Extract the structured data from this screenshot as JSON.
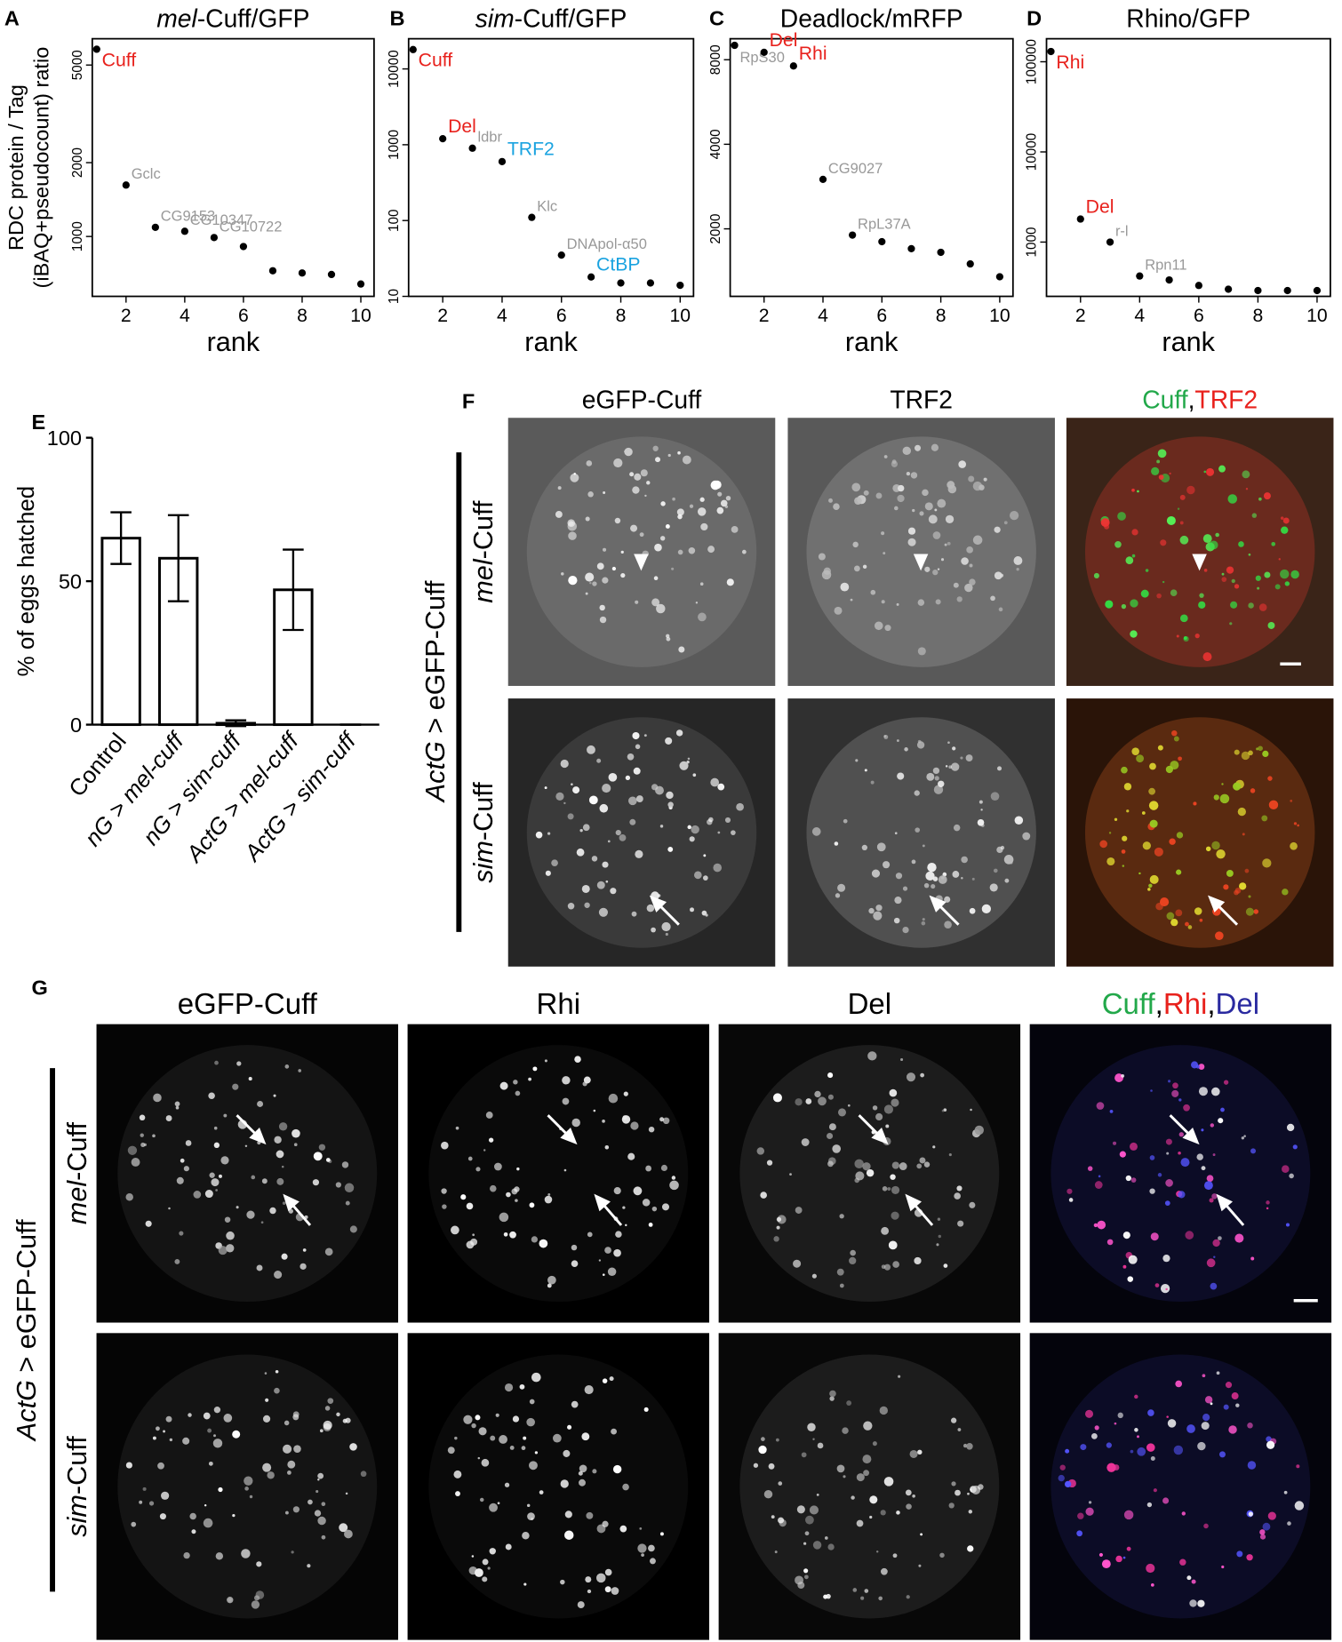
{
  "chart_data": [
    {
      "type": "scatter",
      "panel": "A",
      "title": [
        {
          "text": "mel",
          "italic": true
        },
        {
          "text": "-Cuff/GFP"
        }
      ],
      "xlabel": "rank",
      "ylabel": [
        "RDC protein / Tag",
        "(iBAQ+pseudocount) ratio"
      ],
      "x": [
        1,
        2,
        3,
        4,
        5,
        6,
        7,
        8,
        9,
        10
      ],
      "y": [
        5800,
        1620,
        1090,
        1050,
        990,
        910,
        725,
        710,
        700,
        640
      ],
      "point_labels": [
        "Cuff",
        "Gclc",
        "CG9153",
        "CG10347",
        "CG10722",
        null,
        null,
        null,
        null,
        null
      ],
      "point_label_colors": [
        "#e8211c",
        "#999999",
        "#999999",
        "#999999",
        "#999999",
        null,
        null,
        null,
        null,
        null
      ],
      "log_y": true,
      "xlim": [
        0.85,
        10.45
      ],
      "ylim": [
        570,
        6400
      ],
      "xticks": [
        2,
        4,
        6,
        8,
        10
      ],
      "yticks": [
        1000,
        2000,
        5000
      ],
      "color": "#000000"
    },
    {
      "type": "scatter",
      "panel": "B",
      "title": [
        {
          "text": "sim",
          "italic": true
        },
        {
          "text": "-Cuff/GFP"
        }
      ],
      "xlabel": "rank",
      "x": [
        1,
        2,
        3,
        4,
        5,
        6,
        7,
        8,
        9,
        10
      ],
      "y": [
        18000,
        1200,
        900,
        600,
        110,
        35,
        18,
        15,
        15,
        14
      ],
      "point_labels": [
        "Cuff",
        "Del",
        "ldbr",
        "TRF2",
        "Klc",
        "DNApol-α50",
        "CtBP",
        null,
        null,
        null
      ],
      "point_label_colors": [
        "#e8211c",
        "#e8211c",
        "#999999",
        "#1aa3e0",
        "#999999",
        "#999999",
        "#1aa3e0",
        null,
        null,
        null
      ],
      "log_y": true,
      "xlim": [
        0.85,
        10.45
      ],
      "ylim": [
        10,
        25000
      ],
      "xticks": [
        2,
        4,
        6,
        8,
        10
      ],
      "yticks": [
        10,
        100,
        1000,
        10000
      ],
      "color": "#000000"
    },
    {
      "type": "scatter",
      "panel": "C",
      "title": [
        {
          "text": "Deadlock/mRFP"
        }
      ],
      "xlabel": "rank",
      "x": [
        1,
        2,
        3,
        4,
        5,
        6,
        7,
        8,
        9,
        10
      ],
      "y": [
        9000,
        8500,
        7600,
        3000,
        1900,
        1800,
        1700,
        1650,
        1500,
        1350
      ],
      "point_labels": [
        "RpS30",
        "Del",
        "Rhi",
        "CG9027",
        "RpL37A",
        null,
        null,
        null,
        null,
        null
      ],
      "point_label_colors": [
        "#999999",
        "#e8211c",
        "#e8211c",
        "#999999",
        "#999999",
        null,
        null,
        null,
        null,
        null
      ],
      "log_y": true,
      "xlim": [
        0.85,
        10.45
      ],
      "ylim": [
        1150,
        9500
      ],
      "xticks": [
        2,
        4,
        6,
        8,
        10
      ],
      "yticks": [
        2000,
        4000,
        8000
      ],
      "color": "#000000"
    },
    {
      "type": "scatter",
      "panel": "D",
      "title": [
        {
          "text": "Rhino/GFP"
        }
      ],
      "xlabel": "rank",
      "x": [
        1,
        2,
        3,
        4,
        5,
        6,
        7,
        8,
        9,
        10
      ],
      "y": [
        130000,
        1800,
        1000,
        420,
        380,
        330,
        300,
        290,
        290,
        290
      ],
      "point_labels": [
        "Rhi",
        "Del",
        "r-l",
        "Rpn11",
        null,
        null,
        null,
        null,
        null,
        null
      ],
      "point_label_colors": [
        "#e8211c",
        "#e8211c",
        "#999999",
        "#999999",
        null,
        null,
        null,
        null,
        null,
        null
      ],
      "log_y": true,
      "xlim": [
        0.85,
        10.45
      ],
      "ylim": [
        250,
        180000
      ],
      "xticks": [
        2,
        4,
        6,
        8,
        10
      ],
      "yticks": [
        1000,
        10000,
        100000
      ],
      "color": "#000000"
    },
    {
      "type": "bar",
      "panel": "E",
      "ylabel": "% of eggs hatched",
      "categories": [
        "Control",
        "nG > mel-cuff",
        "nG > sim-cuff",
        "ActG > mel-cuff",
        "ActG > sim-cuff"
      ],
      "category_italic": [
        false,
        true,
        true,
        true,
        true
      ],
      "values": [
        65,
        58,
        0.5,
        47,
        0
      ],
      "errors": [
        9,
        15,
        1,
        14,
        0
      ],
      "ylim": [
        0,
        100
      ],
      "yticks": [
        0,
        50,
        100
      ],
      "color": "#ffffff",
      "edge_color": "#000000"
    }
  ],
  "figure": {
    "F": {
      "panel": "F",
      "headers": [
        [
          {
            "text": "eGFP-Cuff"
          }
        ],
        [
          {
            "text": "TRF2"
          }
        ],
        [
          {
            "text": "Cuff",
            "color": "#22a84a"
          },
          {
            "text": ","
          },
          {
            "text": "TRF2",
            "color": "#e8211c"
          }
        ]
      ],
      "row_labels": [
        [
          {
            "text": "mel",
            "italic": true
          },
          {
            "text": "-Cuff"
          }
        ],
        [
          {
            "text": "sim",
            "italic": true
          },
          {
            "text": "-Cuff"
          }
        ]
      ],
      "side_label": [
        {
          "text": "ActG",
          "italic": true
        },
        {
          "text": " > eGFP-Cuff"
        }
      ]
    },
    "G": {
      "panel": "G",
      "headers": [
        [
          {
            "text": "eGFP-Cuff"
          }
        ],
        [
          {
            "text": "Rhi"
          }
        ],
        [
          {
            "text": "Del"
          }
        ],
        [
          {
            "text": "Cuff",
            "color": "#22a84a"
          },
          {
            "text": ","
          },
          {
            "text": "Rhi",
            "color": "#e8211c"
          },
          {
            "text": ","
          },
          {
            "text": "Del",
            "color": "#2a2aa0"
          }
        ]
      ],
      "row_labels": [
        [
          {
            "text": "mel",
            "italic": true
          },
          {
            "text": "-Cuff"
          }
        ],
        [
          {
            "text": "sim",
            "italic": true
          },
          {
            "text": "-Cuff"
          }
        ]
      ],
      "side_label": [
        {
          "text": "ActG",
          "italic": true
        },
        {
          "text": " > eGFP-Cuff"
        }
      ]
    }
  }
}
